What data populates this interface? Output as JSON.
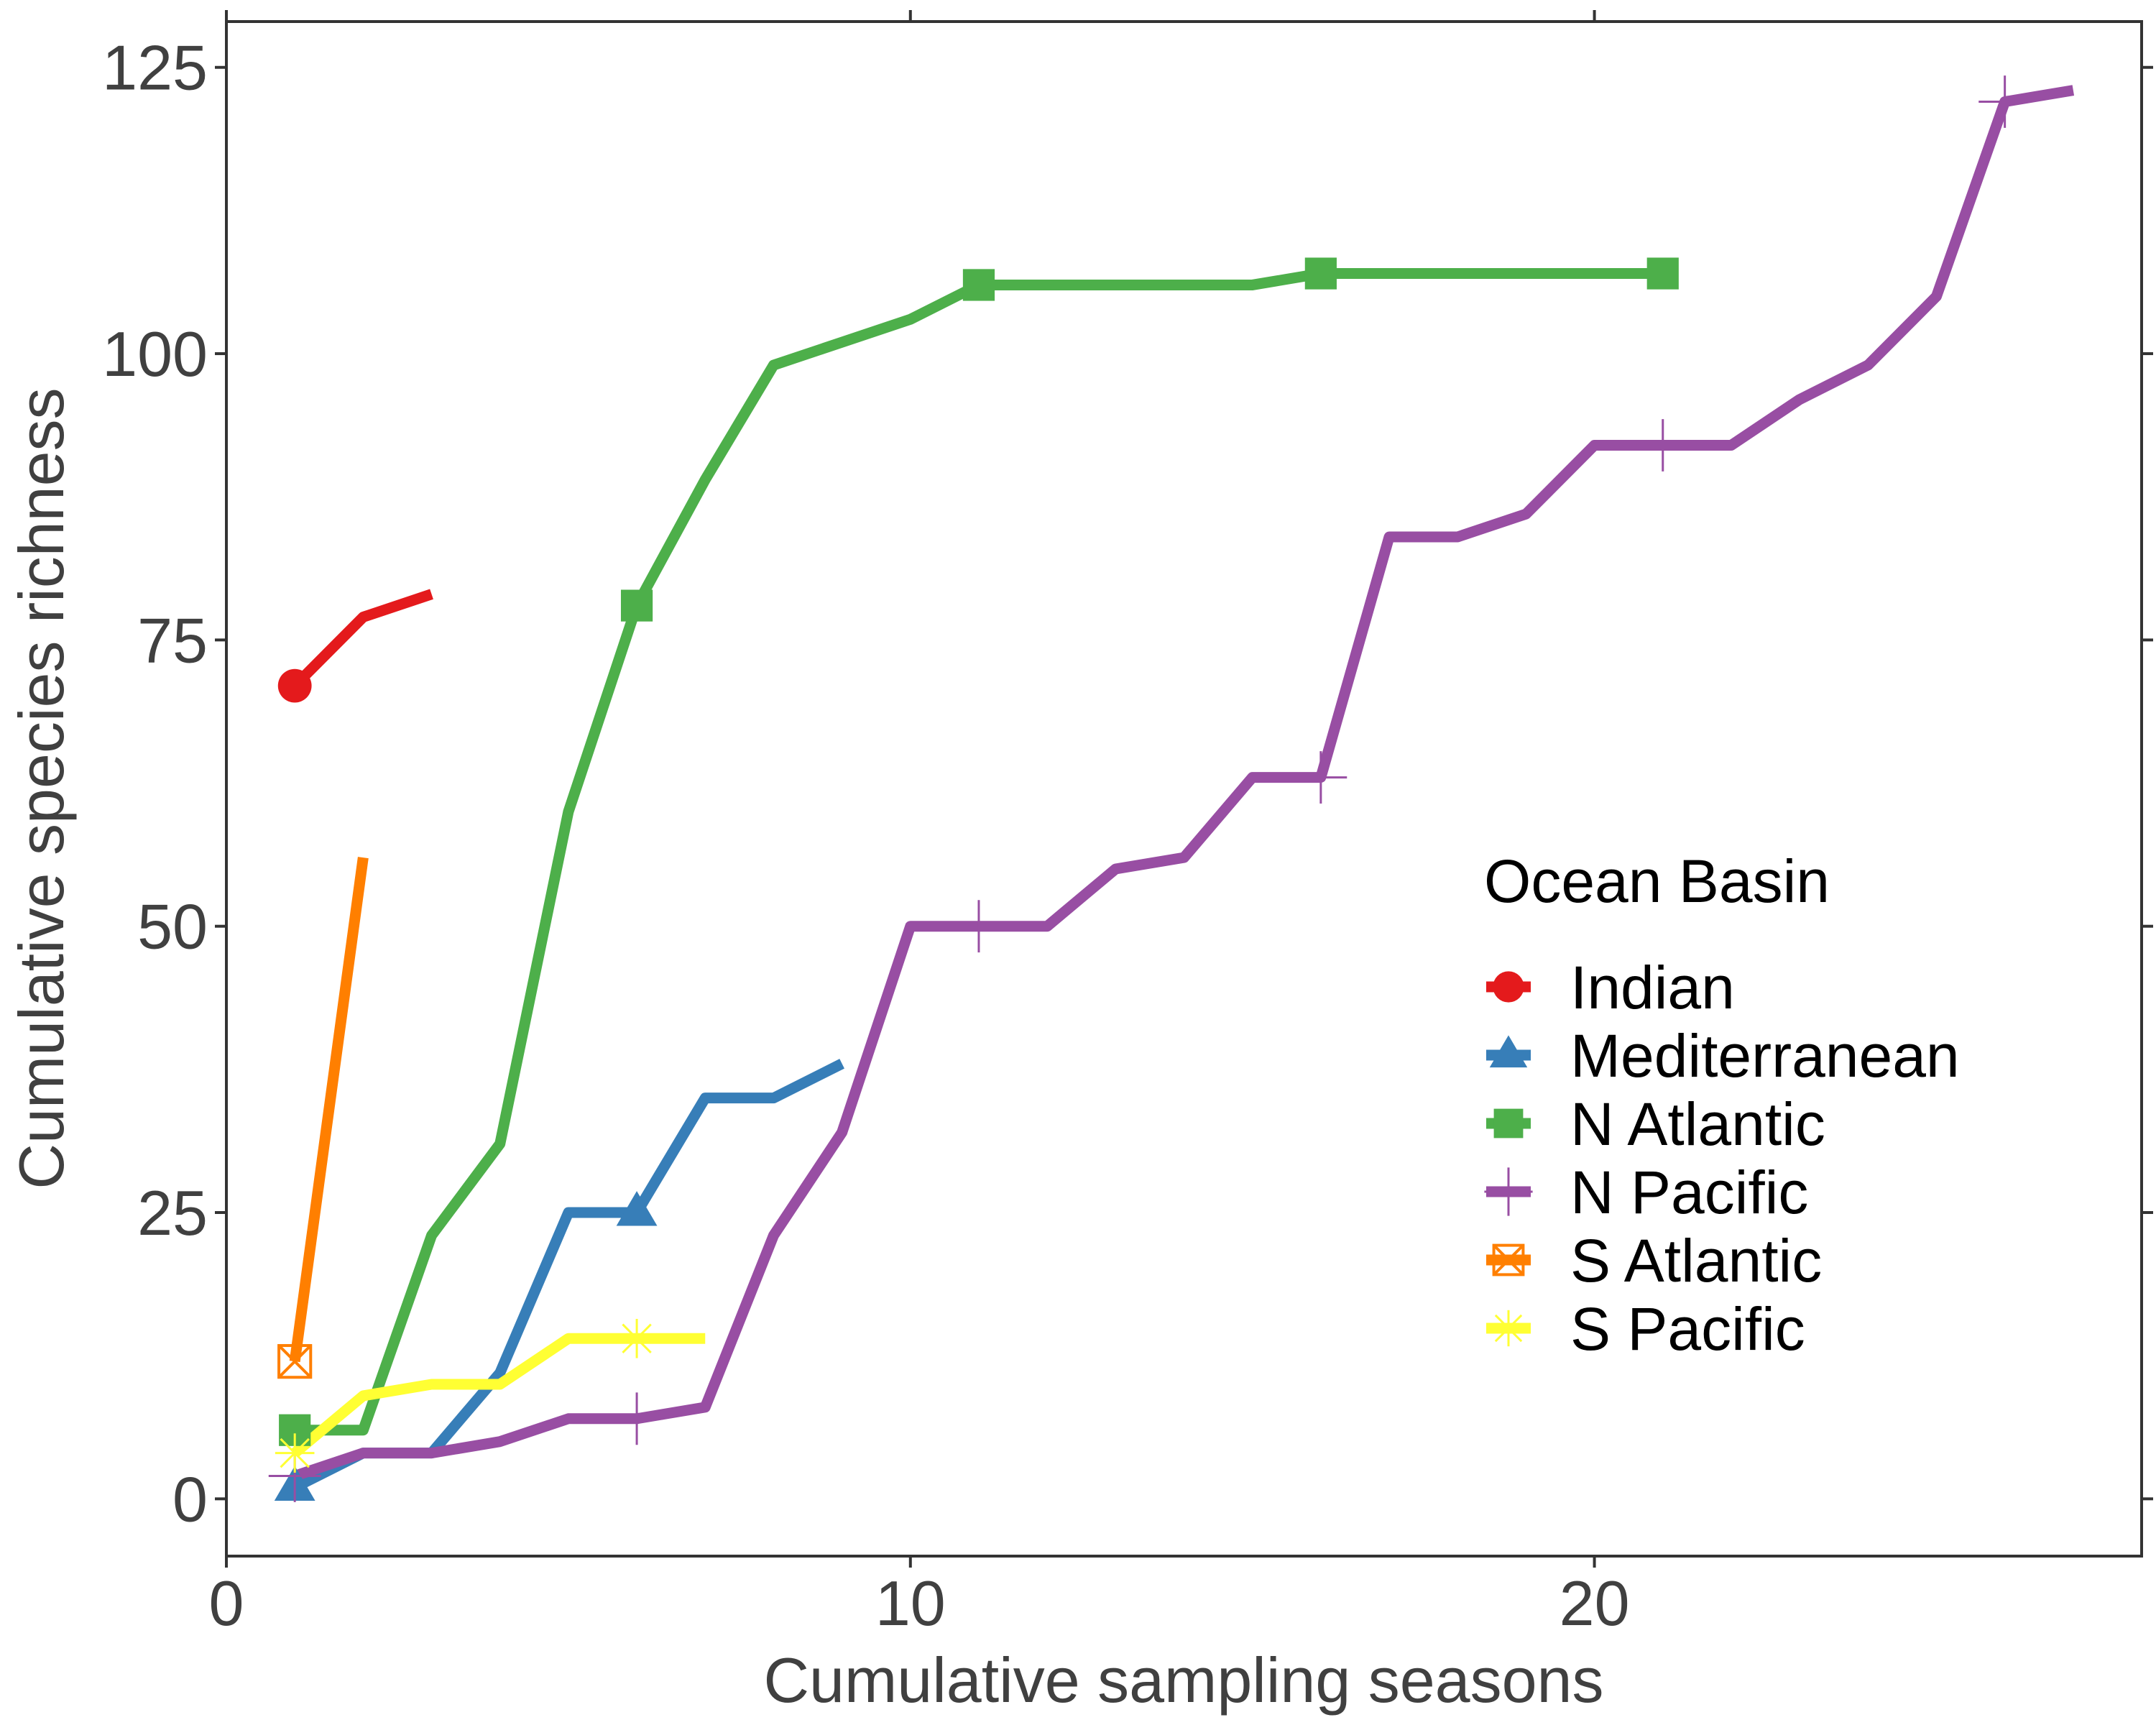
{
  "chart_data": {
    "type": "line",
    "xlabel": "Cumulative sampling seasons",
    "ylabel": "Cumulative species richness",
    "xlim": [
      0,
      28
    ],
    "ylim": [
      -5,
      129
    ],
    "x_ticks": [
      {
        "value": 0,
        "label": "0"
      },
      {
        "value": 10,
        "label": "10"
      },
      {
        "value": 20,
        "label": "20"
      }
    ],
    "y_ticks": [
      {
        "value": 0,
        "label": "0"
      },
      {
        "value": 25,
        "label": "25"
      },
      {
        "value": 50,
        "label": "50"
      },
      {
        "value": 75,
        "label": "75"
      },
      {
        "value": 100,
        "label": "100"
      },
      {
        "value": 125,
        "label": "125"
      }
    ],
    "grid": false,
    "legend": {
      "title": "Ocean Basin",
      "position": "right"
    },
    "series": [
      {
        "name": "Indian",
        "color": "#E41A1C",
        "shape": "circle",
        "x": [
          1,
          2,
          3
        ],
        "y": [
          71,
          77,
          79
        ],
        "marker_x": [
          1
        ]
      },
      {
        "name": "Mediterranean",
        "color": "#377EB8",
        "shape": "triangle",
        "x": [
          1,
          2,
          3,
          4,
          5,
          6,
          7,
          8,
          9
        ],
        "y": [
          1,
          4,
          4,
          11,
          25,
          25,
          35,
          35,
          38
        ],
        "marker_x": [
          1,
          6
        ]
      },
      {
        "name": "N Atlantic",
        "color": "#4DAF4A",
        "shape": "square",
        "x": [
          1,
          2,
          3,
          4,
          5,
          6,
          7,
          8,
          9,
          10,
          11,
          12,
          13,
          14,
          15,
          16,
          17,
          18,
          19,
          20,
          21
        ],
        "y": [
          6,
          6,
          23,
          31,
          60,
          78,
          89,
          99,
          101,
          103,
          106,
          106,
          106,
          106,
          106,
          107,
          107,
          107,
          107,
          107,
          107
        ],
        "marker_x": [
          1,
          6,
          11,
          16,
          21
        ]
      },
      {
        "name": "N Pacific",
        "color": "#984EA3",
        "shape": "plus",
        "x": [
          1,
          2,
          3,
          4,
          5,
          6,
          7,
          8,
          9,
          10,
          11,
          12,
          13,
          14,
          15,
          16,
          17,
          18,
          19,
          20,
          21,
          22,
          23,
          24,
          25,
          26,
          27
        ],
        "y": [
          2,
          4,
          4,
          5,
          7,
          7,
          8,
          23,
          32,
          50,
          50,
          50,
          55,
          56,
          63,
          63,
          84,
          84,
          86,
          92,
          92,
          92,
          96,
          99,
          105,
          122,
          123
        ],
        "marker_x": [
          1,
          6,
          11,
          16,
          21,
          26
        ]
      },
      {
        "name": "S Atlantic",
        "color": "#FF7F00",
        "shape": "square-cross",
        "x": [
          1,
          2
        ],
        "y": [
          12,
          56
        ],
        "marker_x": [
          1
        ]
      },
      {
        "name": "S Pacific",
        "color": "#FFFF33",
        "shape": "asterisk",
        "x": [
          1,
          2,
          3,
          4,
          5,
          6,
          7
        ],
        "y": [
          4,
          9,
          10,
          10,
          14,
          14,
          14
        ],
        "marker_x": [
          1,
          6
        ]
      }
    ]
  }
}
